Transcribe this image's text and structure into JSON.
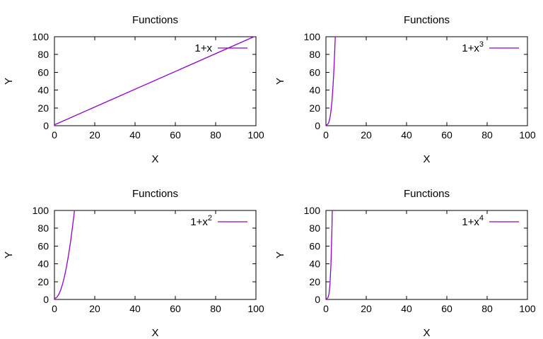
{
  "figure": {
    "background": "#ffffff",
    "frame_color": "#000000",
    "text_color": "#000000",
    "accent_line_color": "#9400d3"
  },
  "chart_data": [
    {
      "type": "line",
      "position": "top-left",
      "title": "Functions",
      "xlabel": "X",
      "ylabel": "Y",
      "xlim": [
        0,
        100
      ],
      "ylim": [
        0,
        100
      ],
      "xticks": [
        "0",
        "20",
        "40",
        "60",
        "80",
        "100"
      ],
      "yticks": [
        "0",
        "20",
        "40",
        "60",
        "80",
        "100"
      ],
      "grid": false,
      "legend_position": "top-right-inside",
      "series": [
        {
          "name": "1+x",
          "label_base": "1+x",
          "label_sup": "",
          "color": "#9400d3",
          "points": [
            [
              0,
              1
            ],
            [
              99,
              100
            ]
          ]
        }
      ]
    },
    {
      "type": "line",
      "position": "top-right",
      "title": "Functions",
      "xlabel": "X",
      "ylabel": "Y",
      "xlim": [
        0,
        100
      ],
      "ylim": [
        0,
        100
      ],
      "xticks": [
        "0",
        "20",
        "40",
        "60",
        "80",
        "100"
      ],
      "yticks": [
        "0",
        "20",
        "40",
        "60",
        "80",
        "100"
      ],
      "grid": false,
      "legend_position": "top-right-inside",
      "series": [
        {
          "name": "1+x^3",
          "label_base": "1+x",
          "label_sup": "3",
          "color": "#9400d3",
          "points": [
            [
              0,
              1
            ],
            [
              0.5,
              1.13
            ],
            [
              1,
              2
            ],
            [
              1.5,
              4.38
            ],
            [
              2,
              9
            ],
            [
              2.5,
              16.63
            ],
            [
              3,
              28
            ],
            [
              3.5,
              43.88
            ],
            [
              4,
              65
            ],
            [
              4.3,
              80.51
            ],
            [
              4.63,
              100
            ]
          ]
        }
      ]
    },
    {
      "type": "line",
      "position": "bottom-left",
      "title": "Functions",
      "xlabel": "X",
      "ylabel": "Y",
      "xlim": [
        0,
        100
      ],
      "ylim": [
        0,
        100
      ],
      "xticks": [
        "0",
        "20",
        "40",
        "60",
        "80",
        "100"
      ],
      "yticks": [
        "0",
        "20",
        "40",
        "60",
        "80",
        "100"
      ],
      "grid": false,
      "legend_position": "top-right-inside",
      "series": [
        {
          "name": "1+x^2",
          "label_base": "1+x",
          "label_sup": "2",
          "color": "#9400d3",
          "points": [
            [
              0,
              1
            ],
            [
              1,
              2
            ],
            [
              2,
              5
            ],
            [
              3,
              10
            ],
            [
              4,
              17
            ],
            [
              5,
              26
            ],
            [
              6,
              37
            ],
            [
              7,
              50
            ],
            [
              8,
              65
            ],
            [
              9,
              82
            ],
            [
              9.95,
              100
            ]
          ]
        }
      ]
    },
    {
      "type": "line",
      "position": "bottom-right",
      "title": "Functions",
      "xlabel": "X",
      "ylabel": "Y",
      "xlim": [
        0,
        100
      ],
      "ylim": [
        0,
        100
      ],
      "xticks": [
        "0",
        "20",
        "40",
        "60",
        "80",
        "100"
      ],
      "yticks": [
        "0",
        "20",
        "40",
        "60",
        "80",
        "100"
      ],
      "grid": false,
      "legend_position": "top-right-inside",
      "series": [
        {
          "name": "1+x^4",
          "label_base": "1+x",
          "label_sup": "4",
          "color": "#9400d3",
          "points": [
            [
              0,
              1
            ],
            [
              0.5,
              1.06
            ],
            [
              1,
              2
            ],
            [
              1.5,
              6.06
            ],
            [
              2,
              17
            ],
            [
              2.5,
              40.06
            ],
            [
              3,
              82
            ],
            [
              3.15,
              100
            ]
          ]
        }
      ]
    }
  ]
}
